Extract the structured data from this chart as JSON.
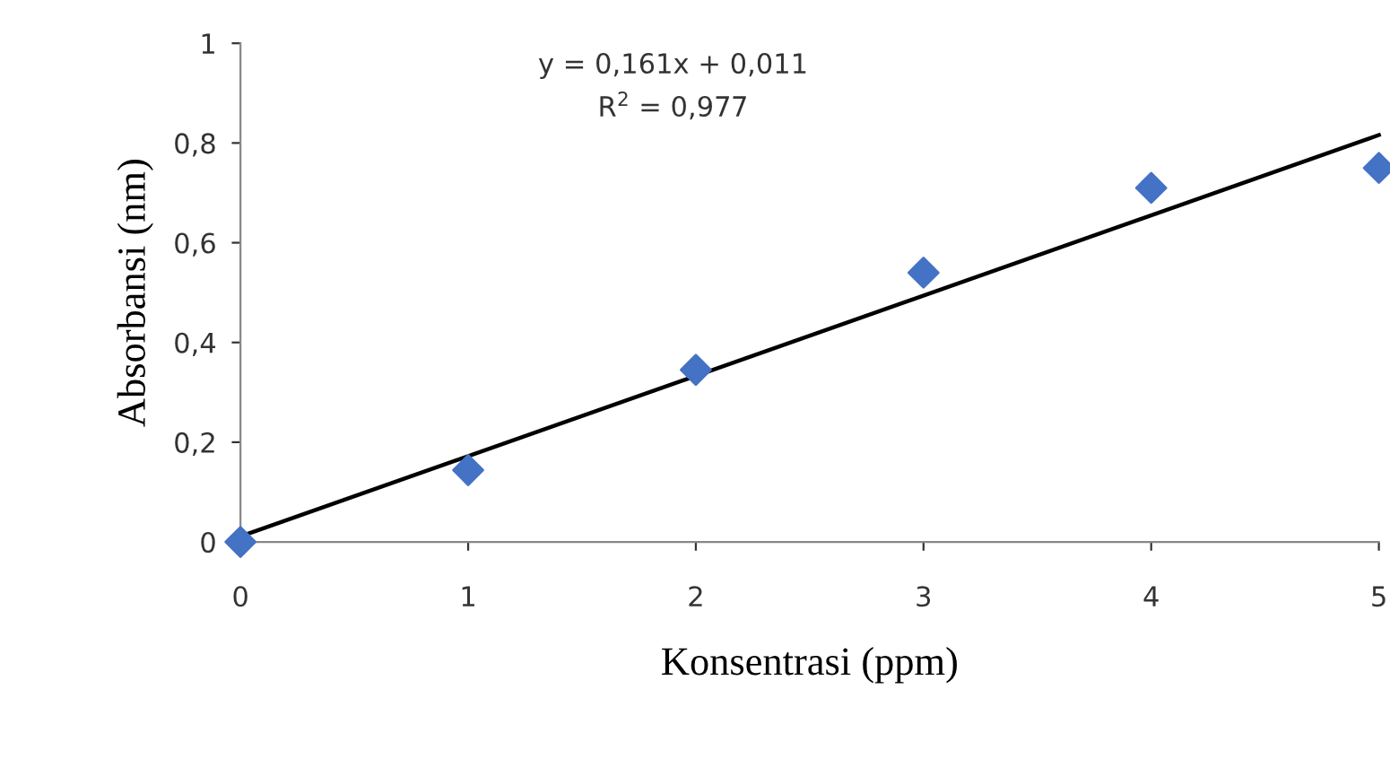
{
  "chart_data": {
    "type": "scatter",
    "xlabel": "Konsentrasi (ppm)",
    "ylabel": "Absorbansi (nm)",
    "annotations": [
      "y = 0,161x + 0,011",
      "R$^{2}$ = 0,977"
    ],
    "x": [
      0,
      1,
      2,
      3,
      4,
      5
    ],
    "series": [
      {
        "color": "#4472c4",
        "marker": "diamond",
        "values": [
          0,
          0.144,
          0.345,
          0.54,
          0.71,
          0.75
        ]
      },
      {
        "type": "line",
        "color": "#000000",
        "marker": "none",
        "x": [
          0,
          5
        ],
        "values": [
          0.011,
          0.816
        ]
      }
    ],
    "xlim": [
      0,
      5
    ],
    "xticks": [
      0,
      1,
      2,
      3,
      4,
      5
    ],
    "ylim": [
      0,
      1
    ],
    "yticks": [
      0,
      {
        "value": 0.2,
        "label": "0,2"
      },
      {
        "value": 0.4,
        "label": "0,4"
      },
      {
        "value": 0.6,
        "label": "0,6"
      },
      {
        "value": 0.8,
        "label": "0,8"
      },
      1
    ],
    "grid": false,
    "legend": false
  }
}
